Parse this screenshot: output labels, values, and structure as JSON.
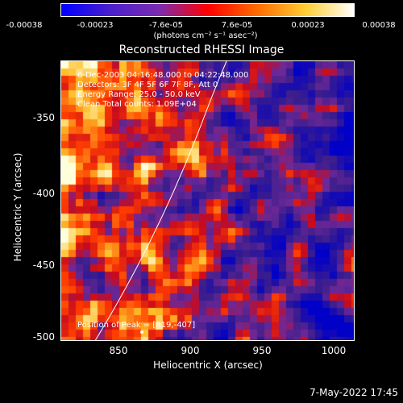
{
  "colorbar": {
    "ticks": [
      "-0.00038",
      "-0.00023",
      "-7.6e-05",
      "7.6e-05",
      "0.00023",
      "0.00038"
    ],
    "units": "(photons cm⁻² s⁻¹ asec⁻²)",
    "gradient": [
      "#0000ff",
      "#4a1fcc",
      "#7b2bb0",
      "#ff0000",
      "#ff6a00",
      "#ffcc33",
      "#ffffff"
    ]
  },
  "title": "Reconstructed RHESSI Image",
  "axes": {
    "xlabel": "Heliocentric X (arcsec)",
    "ylabel": "Heliocentric Y (arcsec)",
    "xticks": [
      "850",
      "900",
      "950",
      "1000"
    ],
    "yticks": [
      "-350",
      "-400",
      "-450",
      "-500"
    ],
    "xlim": [
      815,
      1005
    ],
    "ylim": [
      -503,
      -320
    ]
  },
  "info": {
    "line1": "6-Dec-2003 04:16:48.000 to 04:22:48.000",
    "line2": "Detectors: 3F 4F 5F 6F 7F 8F, Att 0",
    "line3": "Energy Range: 25.0 - 50.0 keV",
    "line4": "Clean     Total counts: 1.09E+04",
    "peak": "Position of Peak = [819,-407]"
  },
  "timestamp": "7-May-2022 17:45"
}
